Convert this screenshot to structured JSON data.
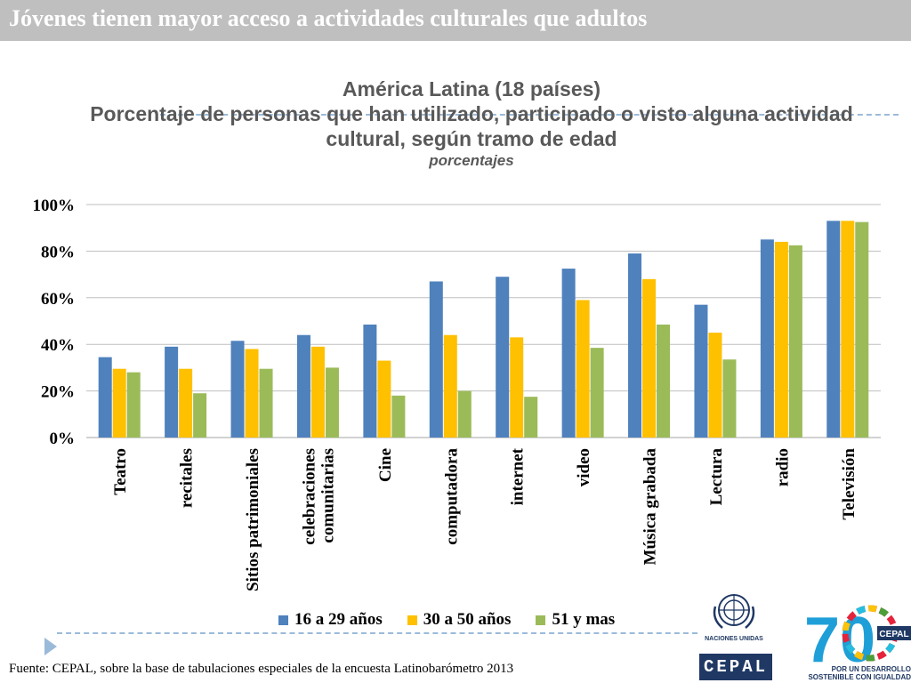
{
  "header": {
    "title": "Jóvenes tienen mayor acceso a actividades culturales que adultos"
  },
  "chart_titles": {
    "line1": "América Latina (18 países)",
    "line2": "Porcentaje de personas que han utilizado, participado o visto alguna actividad",
    "line3": "cultural, según tramo de edad",
    "line4": "porcentajes"
  },
  "chart_data": {
    "type": "bar",
    "categories": [
      "Teatro",
      "recitales",
      "Sitios patrimoniales",
      "celebraciones comunitarias",
      "Cine",
      "computadora",
      "internet",
      "video",
      "Música grabada",
      "Lectura",
      "radio",
      "Televisión"
    ],
    "series": [
      {
        "name": "16 a 29 años",
        "color": "#4f81bd",
        "values": [
          34.5,
          39,
          41.5,
          44,
          48.5,
          67,
          69,
          72.5,
          79,
          57,
          85,
          93
        ]
      },
      {
        "name": "30 a 50 años",
        "color": "#ffc000",
        "values": [
          29.5,
          29.5,
          38,
          39,
          33,
          44,
          43,
          59,
          68,
          45,
          84,
          93
        ]
      },
      {
        "name": "51 y mas",
        "color": "#9bbb59",
        "values": [
          28,
          19,
          29.5,
          30,
          18,
          20,
          17.5,
          38.5,
          48.5,
          33.5,
          82.5,
          92.5
        ]
      }
    ],
    "yticks": [
      "0%",
      "20%",
      "40%",
      "60%",
      "80%",
      "100%"
    ],
    "ylim": [
      0,
      100
    ],
    "grid": true,
    "legend_position": "bottom"
  },
  "footer": {
    "source": "Fuente: CEPAL, sobre la base de tabulaciones especiales de la encuesta Latinobarómetro 2013",
    "un_logo_text": "NACIONES UNIDAS",
    "cepal_logo_text": "CEPAL",
    "anniv_number": "70",
    "anniv_badge": "CEPAL",
    "anniv_text_line1": "POR UN DESARROLLO",
    "anniv_text_line2": "SOSTENIBLE CON IGUALDAD"
  }
}
